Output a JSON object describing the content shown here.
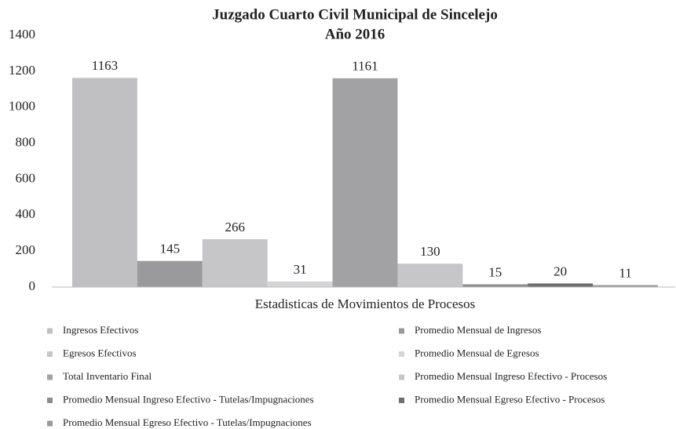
{
  "chart_data": {
    "type": "bar",
    "title": "Juzgado Cuarto Civil Municipal de Sincelejo",
    "subtitle": "Año 2016",
    "categories": [
      "Estadisticas de Movimientos de Procesos"
    ],
    "series": [
      {
        "name": "Ingresos Efectivos",
        "color": "#c0c0c2",
        "values": [
          1163
        ]
      },
      {
        "name": "Promedio Mensual de Ingresos",
        "color": "#9a9a9c",
        "values": [
          145
        ]
      },
      {
        "name": "Egresos Efectivos",
        "color": "#c6c6c8",
        "values": [
          266
        ]
      },
      {
        "name": "Promedio Mensual de Egresos",
        "color": "#d5d5d7",
        "values": [
          31
        ]
      },
      {
        "name": "Total Inventario Final",
        "color": "#a2a2a4",
        "values": [
          1161
        ]
      },
      {
        "name": "Promedio Mensual Ingreso Efectivo - Procesos",
        "color": "#c6c6c8",
        "values": [
          130
        ]
      },
      {
        "name": "Promedio Mensual Ingreso Efectivo - Tutelas/Impugnaciones",
        "color": "#8d8d8f",
        "values": [
          15
        ]
      },
      {
        "name": "Promedio Mensual Egreso Efectivo - Procesos",
        "color": "#6e6e70",
        "values": [
          20
        ]
      },
      {
        "name": "Promedio Mensual Egreso Efectivo - Tutelas/Impugnaciones",
        "color": "#9a9a9c",
        "values": [
          11
        ]
      }
    ],
    "ylim": [
      0,
      1400
    ],
    "yticks": [
      0,
      200,
      400,
      600,
      800,
      1000,
      1200,
      1400
    ],
    "grid": false
  }
}
